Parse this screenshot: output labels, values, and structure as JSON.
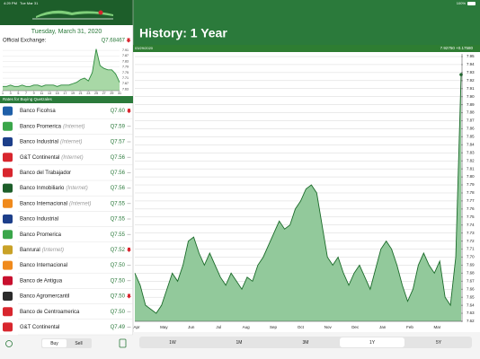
{
  "status_bar": {
    "time": "4:29 PM",
    "date": "Tue Mar 31",
    "battery": "100%"
  },
  "sidebar": {
    "date": "Tuesday, March 31, 2020",
    "exchange_label": "Official Exchange:",
    "exchange_rate": "Q7.68467",
    "exchange_trend": "down",
    "mini_chart": {
      "type": "area",
      "color": "#2e8b3e",
      "x": [
        1,
        2,
        3,
        4,
        5,
        6,
        7,
        8,
        9,
        10,
        11,
        12,
        13,
        14,
        15,
        16,
        17,
        18,
        19,
        20,
        21,
        22,
        23,
        24,
        25,
        26,
        27,
        28,
        29,
        30,
        31
      ],
      "values": [
        7.65,
        7.65,
        7.66,
        7.65,
        7.65,
        7.66,
        7.65,
        7.65,
        7.66,
        7.66,
        7.65,
        7.66,
        7.66,
        7.66,
        7.65,
        7.66,
        7.66,
        7.66,
        7.67,
        7.68,
        7.7,
        7.71,
        7.69,
        7.75,
        7.92,
        7.8,
        7.78,
        7.77,
        7.77,
        7.74,
        7.68
      ],
      "xlim": [
        1,
        31
      ],
      "ylim": [
        7.62,
        7.93
      ],
      "xticks": [
        1,
        3,
        5,
        7,
        9,
        11,
        13,
        15,
        17,
        19,
        21,
        23,
        25,
        27,
        29,
        31
      ],
      "yticks": [
        7.91,
        7.87,
        7.83,
        7.79,
        7.75,
        7.71,
        7.67,
        7.63
      ]
    },
    "list_title": "Rates for Buying Quetzales",
    "banks": [
      {
        "name": "Banco Ficohsa",
        "rate": "Q7.60",
        "trend": "down",
        "icon_color": "#1f5fa8"
      },
      {
        "name": "Banco Promerica",
        "note": "(Internet)",
        "rate": "Q7.59",
        "trend": "flat",
        "icon_color": "#3aa64a"
      },
      {
        "name": "Banco Industrial",
        "note": "(Internet)",
        "rate": "Q7.57",
        "trend": "flat",
        "icon_color": "#1d3f8a"
      },
      {
        "name": "G&T Continental",
        "note": "(Internet)",
        "rate": "Q7.56",
        "trend": "flat",
        "icon_color": "#d8262e"
      },
      {
        "name": "Banco del Trabajador",
        "rate": "Q7.56",
        "trend": "flat",
        "icon_color": "#d8262e"
      },
      {
        "name": "Banco Inmobiliario",
        "note": "(Internet)",
        "rate": "Q7.56",
        "trend": "flat",
        "icon_color": "#1d5e2a"
      },
      {
        "name": "Banco Internacional",
        "note": "(Internet)",
        "rate": "Q7.55",
        "trend": "flat",
        "icon_color": "#f08a1c"
      },
      {
        "name": "Banco Industrial",
        "rate": "Q7.55",
        "trend": "flat",
        "icon_color": "#1d3f8a"
      },
      {
        "name": "Banco Promerica",
        "rate": "Q7.55",
        "trend": "flat",
        "icon_color": "#3aa64a"
      },
      {
        "name": "Banrural",
        "note": "(Internet)",
        "rate": "Q7.52",
        "trend": "down",
        "icon_color": "#c9a227"
      },
      {
        "name": "Banco Internacional",
        "rate": "Q7.50",
        "trend": "flat",
        "icon_color": "#f08a1c"
      },
      {
        "name": "Banco de Antigua",
        "rate": "Q7.50",
        "trend": "flat",
        "icon_color": "#c8102e"
      },
      {
        "name": "Banco Agromercantil",
        "rate": "Q7.50",
        "trend": "down",
        "icon_color": "#2b2b2b"
      },
      {
        "name": "Banco de Centroamerica",
        "rate": "Q7.50",
        "trend": "flat",
        "icon_color": "#d8262e"
      },
      {
        "name": "G&T Continental",
        "rate": "Q7.49",
        "trend": "flat",
        "icon_color": "#d8262e"
      }
    ],
    "toggle": {
      "options": [
        "Buy",
        "Sell"
      ],
      "selected": 0
    }
  },
  "history": {
    "title": "History: 1 Year",
    "date": "03/29/2020",
    "quote": "7.92750 +0.17580",
    "chart": {
      "type": "area",
      "color": "#1b6b2a",
      "values": [
        7.68,
        7.665,
        7.64,
        7.635,
        7.63,
        7.64,
        7.66,
        7.68,
        7.67,
        7.69,
        7.72,
        7.725,
        7.705,
        7.69,
        7.705,
        7.69,
        7.675,
        7.665,
        7.68,
        7.67,
        7.66,
        7.675,
        7.67,
        7.69,
        7.7,
        7.715,
        7.73,
        7.745,
        7.735,
        7.74,
        7.76,
        7.77,
        7.785,
        7.79,
        7.78,
        7.74,
        7.7,
        7.69,
        7.7,
        7.68,
        7.665,
        7.68,
        7.69,
        7.675,
        7.66,
        7.685,
        7.71,
        7.72,
        7.71,
        7.69,
        7.665,
        7.645,
        7.66,
        7.69,
        7.705,
        7.69,
        7.68,
        7.695,
        7.65,
        7.64,
        7.7,
        7.9275
      ],
      "ylim": [
        7.62,
        7.95
      ],
      "yticks": [
        7.62,
        7.63,
        7.64,
        7.65,
        7.66,
        7.67,
        7.68,
        7.69,
        {
          "value": 7.7,
          "label": "7.70"
        },
        7.71,
        7.72,
        7.73,
        7.74,
        7.75,
        7.76,
        7.77,
        7.78,
        7.79,
        {
          "value": 7.8,
          "label": "7.80"
        },
        7.81,
        7.82,
        7.83,
        7.84,
        7.85,
        7.86,
        7.87,
        7.88,
        7.89,
        {
          "value": 7.9,
          "label": "7.90"
        },
        7.91,
        7.92,
        7.93,
        7.94,
        7.95
      ],
      "grid": true,
      "x_labels": [
        "Apr",
        "May",
        "Jun",
        "Jul",
        "Aug",
        "Sep",
        "Oct",
        "Nov",
        "Dec",
        "Jan",
        "Feb",
        "Mar"
      ]
    },
    "ranges": {
      "options": [
        "1W",
        "1M",
        "3M",
        "1Y",
        "5Y"
      ],
      "selected": 3
    }
  }
}
